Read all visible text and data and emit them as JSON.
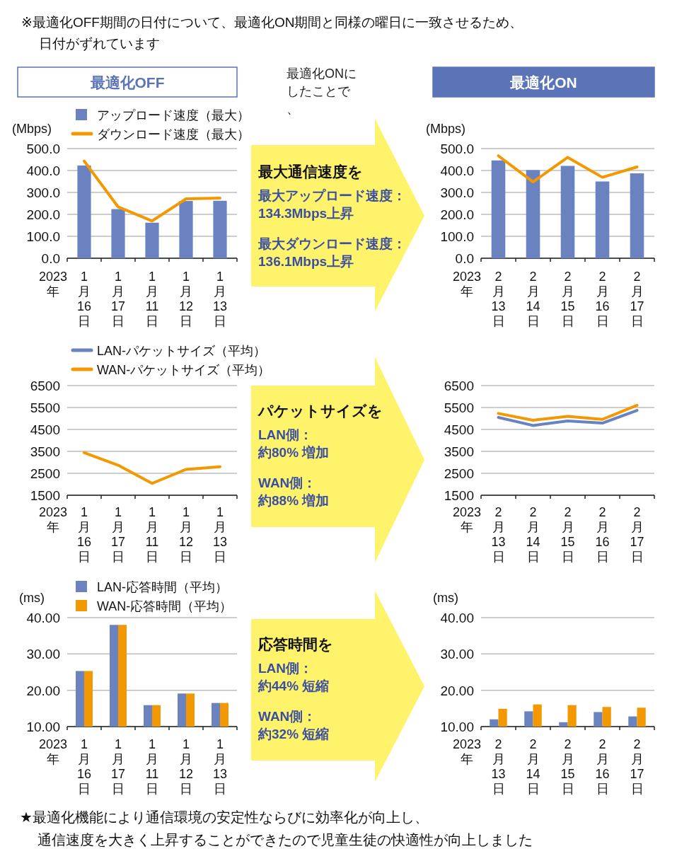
{
  "chart_data": [
    {
      "type": "bar",
      "title": "最適化OFF",
      "annotations": [
        "※最適化OFF期間の日付について、最適化ON期間と同様の曜日に一致させるため、日付がずれています"
      ],
      "xlabel": "2023年",
      "ylabel": "(Mbps)",
      "categories": [
        "1月16日",
        "1月17日",
        "1月11日",
        "1月12日",
        "1月13日"
      ],
      "series": [
        {
          "name": "アップロード速度（最大）",
          "type": "bar",
          "color": "#6b82c0",
          "values": [
            423,
            224,
            162,
            261,
            262
          ]
        },
        {
          "name": "ダウンロード速度（最大）",
          "type": "line",
          "color": "#f39800",
          "values": [
            443,
            234,
            170,
            271,
            274
          ]
        }
      ],
      "ylim": [
        0,
        500
      ],
      "yticks": [
        {
          "value": 0,
          "label": "0.0"
        },
        {
          "value": 100,
          "label": "100.0"
        },
        {
          "value": 200,
          "label": "200.0"
        },
        {
          "value": 300,
          "label": "300.0"
        },
        {
          "value": 400,
          "label": "400.0"
        },
        {
          "value": 500,
          "label": "500.0"
        }
      ],
      "grid": "y",
      "legend": "top"
    },
    {
      "type": "other",
      "subtitle": "最適化ONにしたことで、",
      "title": "最大通信速度を",
      "annotations": [
        "最大アップロード速度：134.3Mbps上昇",
        "最大ダウンロード速度：136.1Mbps上昇"
      ]
    },
    {
      "type": "bar",
      "title": "最適化ON",
      "xlabel": "2023年",
      "ylabel": "(Mbps)",
      "categories": [
        "2月13日",
        "2月14日",
        "2月15日",
        "2月16日",
        "2月17日"
      ],
      "series": [
        {
          "type": "bar",
          "color": "#6b82c0",
          "values": [
            446,
            402,
            421,
            350,
            387
          ]
        },
        {
          "type": "line",
          "color": "#f39800",
          "values": [
            467,
            348,
            460,
            369,
            416
          ]
        }
      ],
      "ylim": [
        0,
        500
      ],
      "yticks": [
        {
          "value": 0,
          "label": "0.0"
        },
        {
          "value": 100,
          "label": "100.0"
        },
        {
          "value": 200,
          "label": "200.0"
        },
        {
          "value": 300,
          "label": "300.0"
        },
        {
          "value": 400,
          "label": "400.0"
        },
        {
          "value": 500,
          "label": "500.0"
        }
      ],
      "grid": "y"
    },
    {
      "type": "line",
      "xlabel": "2023年",
      "categories": [
        "1月16日",
        "1月17日",
        "1月11日",
        "1月12日",
        "1月13日"
      ],
      "series": [
        {
          "name": "LAN-パケットサイズ（平均）",
          "color": "#6b82c0",
          "values": [
            null,
            null,
            null,
            null,
            null
          ]
        },
        {
          "name": "WAN-パケットサイズ（平均）",
          "color": "#f39800",
          "values": [
            3440,
            2870,
            2040,
            2680,
            2800
          ]
        }
      ],
      "ylim": [
        1500,
        6500
      ],
      "yticks": [
        1500,
        2500,
        3500,
        4500,
        5500,
        6500
      ],
      "grid": "y",
      "legend": "top"
    },
    {
      "type": "other",
      "title": "パケットサイズを",
      "annotations": [
        "LAN側：約80% 増加",
        "WAN側：約88% 増加"
      ]
    },
    {
      "type": "line",
      "xlabel": "2023年",
      "categories": [
        "2月13日",
        "2月14日",
        "2月15日",
        "2月16日",
        "2月17日"
      ],
      "series": [
        {
          "color": "#6b82c0",
          "values": [
            5050,
            4680,
            4890,
            4790,
            5370
          ]
        },
        {
          "color": "#f39800",
          "values": [
            5230,
            4920,
            5100,
            4960,
            5600
          ]
        }
      ],
      "ylim": [
        1500,
        6500
      ],
      "yticks": [
        1500,
        2500,
        3500,
        4500,
        5500,
        6500
      ],
      "grid": "y"
    },
    {
      "type": "bar",
      "xlabel": "2023年",
      "ylabel": "(ms)",
      "categories": [
        "1月16日",
        "1月17日",
        "1月11日",
        "1月12日",
        "1月13日"
      ],
      "series": [
        {
          "name": "LAN-応答時間（平均）",
          "color": "#6b82c0",
          "values": [
            25.3,
            38.0,
            15.9,
            19.1,
            16.5
          ]
        },
        {
          "name": "WAN-応答時間（平均）",
          "color": "#f39800",
          "values": [
            25.3,
            38.0,
            15.9,
            19.1,
            16.5
          ]
        }
      ],
      "ylim": [
        10,
        40
      ],
      "yticks": [
        {
          "value": 10,
          "label": "10.00"
        },
        {
          "value": 20,
          "label": "20.00"
        },
        {
          "value": 30,
          "label": "30.00"
        },
        {
          "value": 40,
          "label": "40.00"
        }
      ],
      "grid": "y",
      "legend": "top"
    },
    {
      "type": "other",
      "title": "応答時間を",
      "annotations": [
        "LAN側：約44% 短縮",
        "WAN側：約32% 短縮"
      ]
    },
    {
      "type": "bar",
      "xlabel": "2023年",
      "ylabel": "(ms)",
      "categories": [
        "2月13日",
        "2月14日",
        "2月15日",
        "2月16日",
        "2月17日"
      ],
      "series": [
        {
          "color": "#6b82c0",
          "values": [
            12.0,
            14.2,
            11.2,
            14.0,
            12.8
          ]
        },
        {
          "color": "#f39800",
          "values": [
            14.9,
            16.1,
            15.9,
            15.4,
            15.2
          ]
        }
      ],
      "ylim": [
        10,
        40
      ],
      "yticks": [
        {
          "value": 10,
          "label": "10.00"
        },
        {
          "value": 20,
          "label": "20.00"
        },
        {
          "value": 30,
          "label": "30.00"
        },
        {
          "value": 40,
          "label": "40.00"
        }
      ],
      "grid": "y",
      "annotations": [
        "★最適化機能により通信環境の安定性ならびに効率化が向上し、通信速度を大きく上昇することができたので児童生徒の快適性が向上しました"
      ]
    }
  ]
}
